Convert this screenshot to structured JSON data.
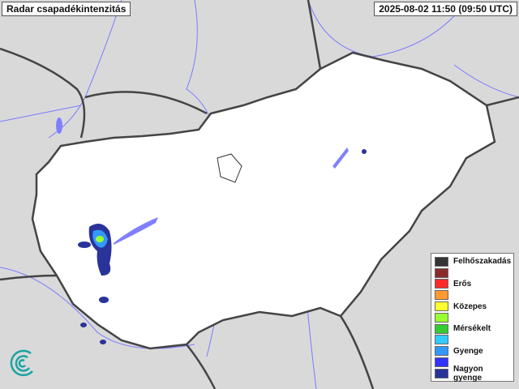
{
  "header": {
    "title": "Radar csapadékintenzitás",
    "timestamp": "2025-08-02 11:50 (09:50 UTC)"
  },
  "legend": {
    "items": [
      {
        "label": "Felhőszakadás",
        "color": "#333333"
      },
      {
        "label": "",
        "color": "#8b2a2a"
      },
      {
        "label": "Erős",
        "color": "#ff2b2b"
      },
      {
        "label": "",
        "color": "#ff9a30"
      },
      {
        "label": "Közepes",
        "color": "#ffff30"
      },
      {
        "label": "",
        "color": "#99ff33"
      },
      {
        "label": "Mérsékelt",
        "color": "#33cc33"
      },
      {
        "label": "",
        "color": "#33ccff"
      },
      {
        "label": "Gyenge",
        "color": "#3399ff"
      },
      {
        "label": "",
        "color": "#3333ff"
      },
      {
        "label": "Nagyon gyenge",
        "color": "#2a3399"
      }
    ]
  },
  "colors": {
    "background": "#d9d9d9",
    "country": "#ffffff",
    "border": "#444444",
    "rivers": "#6b6bff"
  },
  "icons": {
    "logo": "met-service-swirl-logo"
  }
}
